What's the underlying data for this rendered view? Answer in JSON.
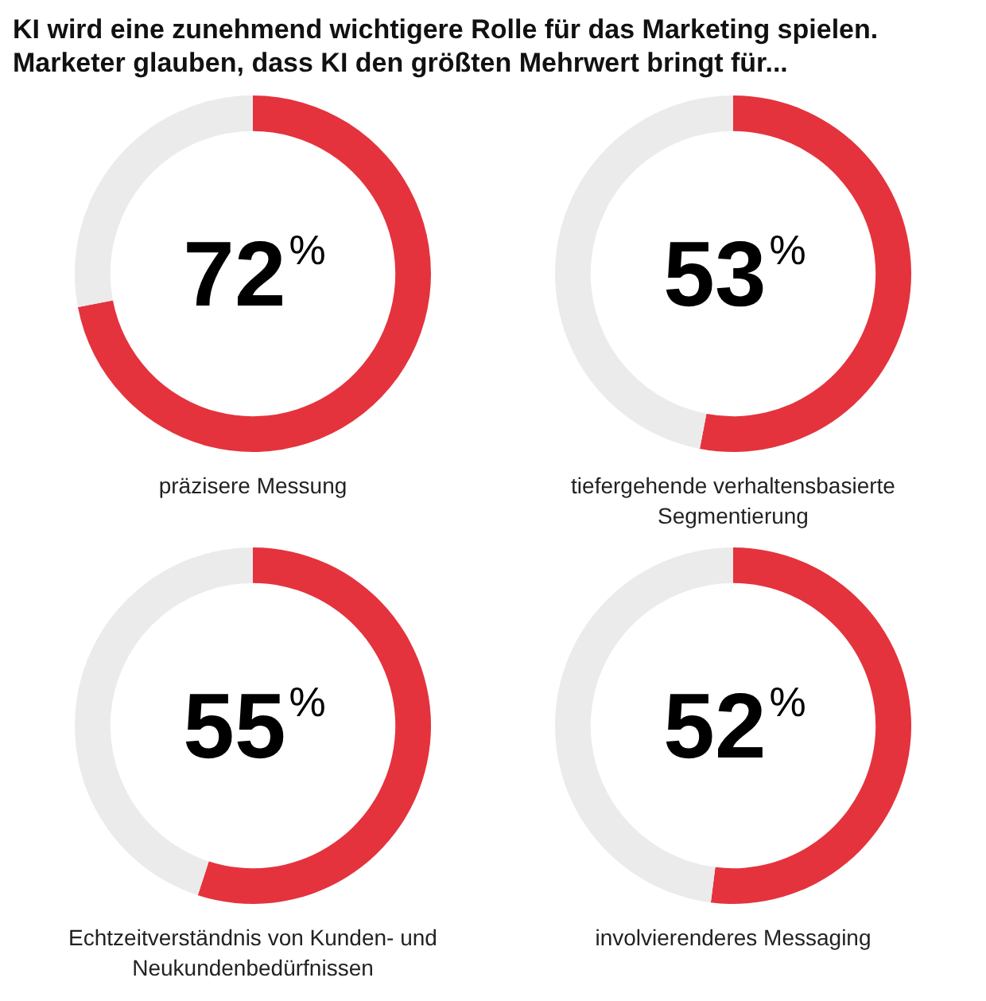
{
  "chart_data": [
    {
      "type": "donut",
      "title": "KI wird eine zunehmend wichtigere Rolle für das Marketing spielen. Marketer glauben, dass KI den größten Mehrwert bringt für...",
      "categories": [
        "präzisere Messung",
        null
      ],
      "values": [
        72,
        28
      ],
      "colors": [
        "#e4333d",
        "#ebebeb"
      ],
      "value_labels": [
        "72%",
        null
      ],
      "legend": false
    },
    {
      "type": "donut",
      "categories": [
        "tiefergehende verhaltensbasierte Segmentierung",
        null
      ],
      "values": [
        53,
        47
      ],
      "colors": [
        "#e4333d",
        "#ebebeb"
      ],
      "value_labels": [
        "53%",
        null
      ],
      "legend": false
    },
    {
      "type": "donut",
      "categories": [
        "Echtzeitverständnis von Kunden- und Neukundenbedürfnissen",
        null
      ],
      "values": [
        55,
        45
      ],
      "colors": [
        "#e4333d",
        "#ebebeb"
      ],
      "value_labels": [
        "55%",
        null
      ],
      "legend": false
    },
    {
      "type": "donut",
      "categories": [
        "involvierenderes Messaging",
        null
      ],
      "values": [
        52,
        48
      ],
      "colors": [
        "#e4333d",
        "#ebebeb"
      ],
      "value_labels": [
        "52%",
        null
      ],
      "legend": false
    }
  ]
}
